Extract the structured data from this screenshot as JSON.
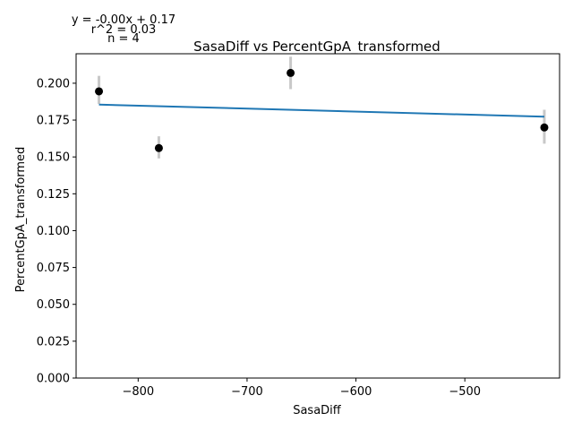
{
  "chart_data": {
    "type": "scatter",
    "title": "SasaDiff vs PercentGpA_transformed",
    "xlabel": "SasaDiff",
    "ylabel": "PercentGpA_transformed",
    "xlim": [
      -857,
      -413
    ],
    "ylim": [
      0.0,
      0.22
    ],
    "xticks": [
      -800,
      -700,
      -600,
      -500
    ],
    "xtick_labels": [
      "−800",
      "−700",
      "−600",
      "−500"
    ],
    "yticks": [
      0.0,
      0.025,
      0.05,
      0.075,
      0.1,
      0.125,
      0.15,
      0.175,
      0.2
    ],
    "ytick_labels": [
      "0.000",
      "0.025",
      "0.050",
      "0.075",
      "0.100",
      "0.125",
      "0.150",
      "0.175",
      "0.200"
    ],
    "grid": false,
    "points": [
      {
        "x": -836,
        "y": 0.1945,
        "err_low": 0.186,
        "err_high": 0.205
      },
      {
        "x": -781,
        "y": 0.156,
        "err_low": 0.149,
        "err_high": 0.164
      },
      {
        "x": -660,
        "y": 0.207,
        "err_low": 0.196,
        "err_high": 0.218
      },
      {
        "x": -427,
        "y": 0.17,
        "err_low": 0.159,
        "err_high": 0.182
      }
    ],
    "regression": {
      "x": [
        -836,
        -427
      ],
      "y": [
        0.1855,
        0.1773
      ]
    },
    "colors": {
      "points": "#000000",
      "errorbars": "#c8c8c8",
      "line": "#1f77b4"
    },
    "annotations": [
      "y = -0.00x + 0.17",
      "r^2 = 0.03",
      "n = 4"
    ]
  }
}
